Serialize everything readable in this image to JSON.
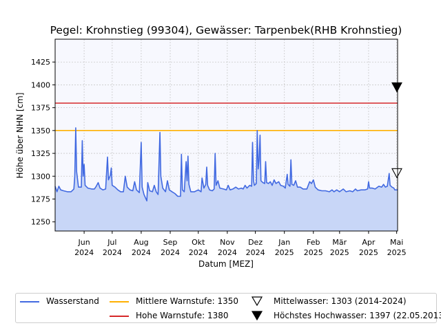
{
  "chart_data": {
    "type": "line",
    "title": "Pegel:  Krohnstieg (99304), Gewässer:  Tarpenbek(RHB Krohnstieg)",
    "xlabel": "Datum [MEZ]",
    "ylabel": "Höhe über NHN [cm]",
    "ylim": [
      1240,
      1450
    ],
    "yticks": [
      1250,
      1275,
      1300,
      1325,
      1350,
      1375,
      1400,
      1425
    ],
    "xlim": [
      "2024-05-01",
      "2025-05-02"
    ],
    "xticks": [
      {
        "date": "2024-06-01",
        "line1": "Jun",
        "line2": "2024"
      },
      {
        "date": "2024-07-01",
        "line1": "Jul",
        "line2": "2024"
      },
      {
        "date": "2024-08-01",
        "line1": "Aug",
        "line2": "2024"
      },
      {
        "date": "2024-09-01",
        "line1": "Sep",
        "line2": "2024"
      },
      {
        "date": "2024-10-01",
        "line1": "Okt",
        "line2": "2024"
      },
      {
        "date": "2024-11-01",
        "line1": "Nov",
        "line2": "2024"
      },
      {
        "date": "2024-12-01",
        "line1": "Dez",
        "line2": "2024"
      },
      {
        "date": "2025-01-01",
        "line1": "Jan",
        "line2": "2025"
      },
      {
        "date": "2025-02-01",
        "line1": "Feb",
        "line2": "2025"
      },
      {
        "date": "2025-03-01",
        "line1": "Mär",
        "line2": "2025"
      },
      {
        "date": "2025-04-01",
        "line1": "Apr",
        "line2": "2025"
      },
      {
        "date": "2025-05-01",
        "line1": "Mai",
        "line2": "2025"
      }
    ],
    "grid": true,
    "legend_position": "bottom",
    "colors": {
      "wasserstand": "#4169e1",
      "fill": "#c8d6f7",
      "mittlere_warnstufe": "#ffb000",
      "hohe_warnstufe": "#d62728",
      "plot_bg": "#f7f8fe",
      "grid": "#c8c8c8"
    },
    "hlines": [
      {
        "name": "Mittlere Warnstufe: 1350",
        "value": 1350,
        "color": "#ffb000"
      },
      {
        "name": "Hohe Warnstufe: 1380",
        "value": 1380,
        "color": "#d62728"
      }
    ],
    "markers": [
      {
        "name": "Mittelwasser: 1303 (2014-2024)",
        "value": 1303,
        "marker": "open-triangle-down"
      },
      {
        "name": "Höchstes Hochwasser: 1397 (22.05.2013)",
        "value": 1397,
        "marker": "filled-triangle-down"
      }
    ],
    "series": [
      {
        "name": "Wasserstand",
        "points": [
          [
            "2024-05-01",
            1289
          ],
          [
            "2024-05-03",
            1283
          ],
          [
            "2024-05-05",
            1289
          ],
          [
            "2024-05-07",
            1285
          ],
          [
            "2024-05-10",
            1284
          ],
          [
            "2024-05-14",
            1283
          ],
          [
            "2024-05-18",
            1283
          ],
          [
            "2024-05-21",
            1286
          ],
          [
            "2024-05-22",
            1300
          ],
          [
            "2024-05-23",
            1353
          ],
          [
            "2024-05-24",
            1305
          ],
          [
            "2024-05-26",
            1288
          ],
          [
            "2024-05-29",
            1288
          ],
          [
            "2024-05-30",
            1339
          ],
          [
            "2024-05-31",
            1300
          ],
          [
            "2024-06-01",
            1313
          ],
          [
            "2024-06-02",
            1290
          ],
          [
            "2024-06-05",
            1287
          ],
          [
            "2024-06-09",
            1286
          ],
          [
            "2024-06-12",
            1286
          ],
          [
            "2024-06-14",
            1289
          ],
          [
            "2024-06-16",
            1293
          ],
          [
            "2024-06-18",
            1287
          ],
          [
            "2024-06-21",
            1285
          ],
          [
            "2024-06-24",
            1286
          ],
          [
            "2024-06-26",
            1321
          ],
          [
            "2024-06-27",
            1296
          ],
          [
            "2024-06-29",
            1301
          ],
          [
            "2024-06-30",
            1309
          ],
          [
            "2024-07-01",
            1290
          ],
          [
            "2024-07-04",
            1288
          ],
          [
            "2024-07-07",
            1285
          ],
          [
            "2024-07-10",
            1283
          ],
          [
            "2024-07-13",
            1283
          ],
          [
            "2024-07-15",
            1300
          ],
          [
            "2024-07-17",
            1288
          ],
          [
            "2024-07-20",
            1285
          ],
          [
            "2024-07-23",
            1284
          ],
          [
            "2024-07-25",
            1294
          ],
          [
            "2024-07-27",
            1285
          ],
          [
            "2024-07-30",
            1282
          ],
          [
            "2024-08-01",
            1337
          ],
          [
            "2024-08-02",
            1288
          ],
          [
            "2024-08-04",
            1280
          ],
          [
            "2024-08-07",
            1273
          ],
          [
            "2024-08-08",
            1293
          ],
          [
            "2024-08-10",
            1284
          ],
          [
            "2024-08-13",
            1283
          ],
          [
            "2024-08-15",
            1290
          ],
          [
            "2024-08-17",
            1283
          ],
          [
            "2024-08-19",
            1280
          ],
          [
            "2024-08-21",
            1348
          ],
          [
            "2024-08-22",
            1300
          ],
          [
            "2024-08-24",
            1287
          ],
          [
            "2024-08-27",
            1283
          ],
          [
            "2024-08-29",
            1295
          ],
          [
            "2024-08-31",
            1285
          ],
          [
            "2024-09-03",
            1283
          ],
          [
            "2024-09-06",
            1281
          ],
          [
            "2024-09-09",
            1278
          ],
          [
            "2024-09-12",
            1278
          ],
          [
            "2024-09-13",
            1324
          ],
          [
            "2024-09-14",
            1285
          ],
          [
            "2024-09-16",
            1283
          ],
          [
            "2024-09-18",
            1316
          ],
          [
            "2024-09-19",
            1295
          ],
          [
            "2024-09-20",
            1322
          ],
          [
            "2024-09-21",
            1291
          ],
          [
            "2024-09-23",
            1283
          ],
          [
            "2024-09-27",
            1283
          ],
          [
            "2024-10-01",
            1285
          ],
          [
            "2024-10-04",
            1283
          ],
          [
            "2024-10-05",
            1298
          ],
          [
            "2024-10-07",
            1287
          ],
          [
            "2024-10-09",
            1291
          ],
          [
            "2024-10-10",
            1310
          ],
          [
            "2024-10-11",
            1290
          ],
          [
            "2024-10-13",
            1285
          ],
          [
            "2024-10-16",
            1284
          ],
          [
            "2024-10-18",
            1286
          ],
          [
            "2024-10-19",
            1325
          ],
          [
            "2024-10-20",
            1290
          ],
          [
            "2024-10-22",
            1295
          ],
          [
            "2024-10-24",
            1287
          ],
          [
            "2024-10-28",
            1286
          ],
          [
            "2024-10-31",
            1285
          ],
          [
            "2024-11-02",
            1290
          ],
          [
            "2024-11-04",
            1285
          ],
          [
            "2024-11-07",
            1286
          ],
          [
            "2024-11-10",
            1288
          ],
          [
            "2024-11-13",
            1286
          ],
          [
            "2024-11-16",
            1287
          ],
          [
            "2024-11-18",
            1286
          ],
          [
            "2024-11-20",
            1290
          ],
          [
            "2024-11-22",
            1287
          ],
          [
            "2024-11-25",
            1290
          ],
          [
            "2024-11-27",
            1289
          ],
          [
            "2024-11-28",
            1337
          ],
          [
            "2024-11-29",
            1295
          ],
          [
            "2024-11-30",
            1290
          ],
          [
            "2024-12-02",
            1292
          ],
          [
            "2024-12-03",
            1350
          ],
          [
            "2024-12-04",
            1308
          ],
          [
            "2024-12-05",
            1318
          ],
          [
            "2024-12-06",
            1345
          ],
          [
            "2024-12-07",
            1295
          ],
          [
            "2024-12-09",
            1293
          ],
          [
            "2024-12-11",
            1292
          ],
          [
            "2024-12-12",
            1316
          ],
          [
            "2024-12-13",
            1293
          ],
          [
            "2024-12-15",
            1292
          ],
          [
            "2024-12-17",
            1294
          ],
          [
            "2024-12-19",
            1290
          ],
          [
            "2024-12-21",
            1296
          ],
          [
            "2024-12-23",
            1292
          ],
          [
            "2024-12-26",
            1294
          ],
          [
            "2024-12-28",
            1290
          ],
          [
            "2024-12-31",
            1289
          ],
          [
            "2025-01-02",
            1287
          ],
          [
            "2025-01-04",
            1302
          ],
          [
            "2025-01-05",
            1291
          ],
          [
            "2025-01-07",
            1289
          ],
          [
            "2025-01-08",
            1318
          ],
          [
            "2025-01-09",
            1291
          ],
          [
            "2025-01-11",
            1290
          ],
          [
            "2025-01-13",
            1295
          ],
          [
            "2025-01-15",
            1288
          ],
          [
            "2025-01-18",
            1288
          ],
          [
            "2025-01-21",
            1286
          ],
          [
            "2025-01-25",
            1286
          ],
          [
            "2025-01-28",
            1294
          ],
          [
            "2025-01-30",
            1292
          ],
          [
            "2025-02-01",
            1296
          ],
          [
            "2025-02-03",
            1288
          ],
          [
            "2025-02-06",
            1285
          ],
          [
            "2025-02-10",
            1284
          ],
          [
            "2025-02-14",
            1284
          ],
          [
            "2025-02-18",
            1283
          ],
          [
            "2025-02-21",
            1285
          ],
          [
            "2025-02-23",
            1283
          ],
          [
            "2025-02-26",
            1285
          ],
          [
            "2025-03-01",
            1283
          ],
          [
            "2025-03-05",
            1286
          ],
          [
            "2025-03-08",
            1283
          ],
          [
            "2025-03-12",
            1284
          ],
          [
            "2025-03-15",
            1283
          ],
          [
            "2025-03-18",
            1286
          ],
          [
            "2025-03-20",
            1284
          ],
          [
            "2025-03-24",
            1285
          ],
          [
            "2025-03-28",
            1285
          ],
          [
            "2025-03-31",
            1286
          ],
          [
            "2025-04-01",
            1294
          ],
          [
            "2025-04-02",
            1287
          ],
          [
            "2025-04-05",
            1287
          ],
          [
            "2025-04-08",
            1286
          ],
          [
            "2025-04-12",
            1289
          ],
          [
            "2025-04-15",
            1288
          ],
          [
            "2025-04-17",
            1291
          ],
          [
            "2025-04-19",
            1288
          ],
          [
            "2025-04-21",
            1289
          ],
          [
            "2025-04-23",
            1303
          ],
          [
            "2025-04-24",
            1290
          ],
          [
            "2025-04-26",
            1288
          ],
          [
            "2025-04-28",
            1287
          ],
          [
            "2025-04-29",
            1285
          ],
          [
            "2025-05-02",
            1285
          ]
        ]
      }
    ]
  },
  "legend": {
    "wasserstand": "Wasserstand",
    "mittlere": "Mittlere Warnstufe: 1350",
    "hohe": "Hohe Warnstufe: 1380",
    "mittelwasser": "Mittelwasser: 1303 (2014-2024)",
    "hochwasser": "Höchstes Hochwasser: 1397 (22.05.2013)"
  }
}
